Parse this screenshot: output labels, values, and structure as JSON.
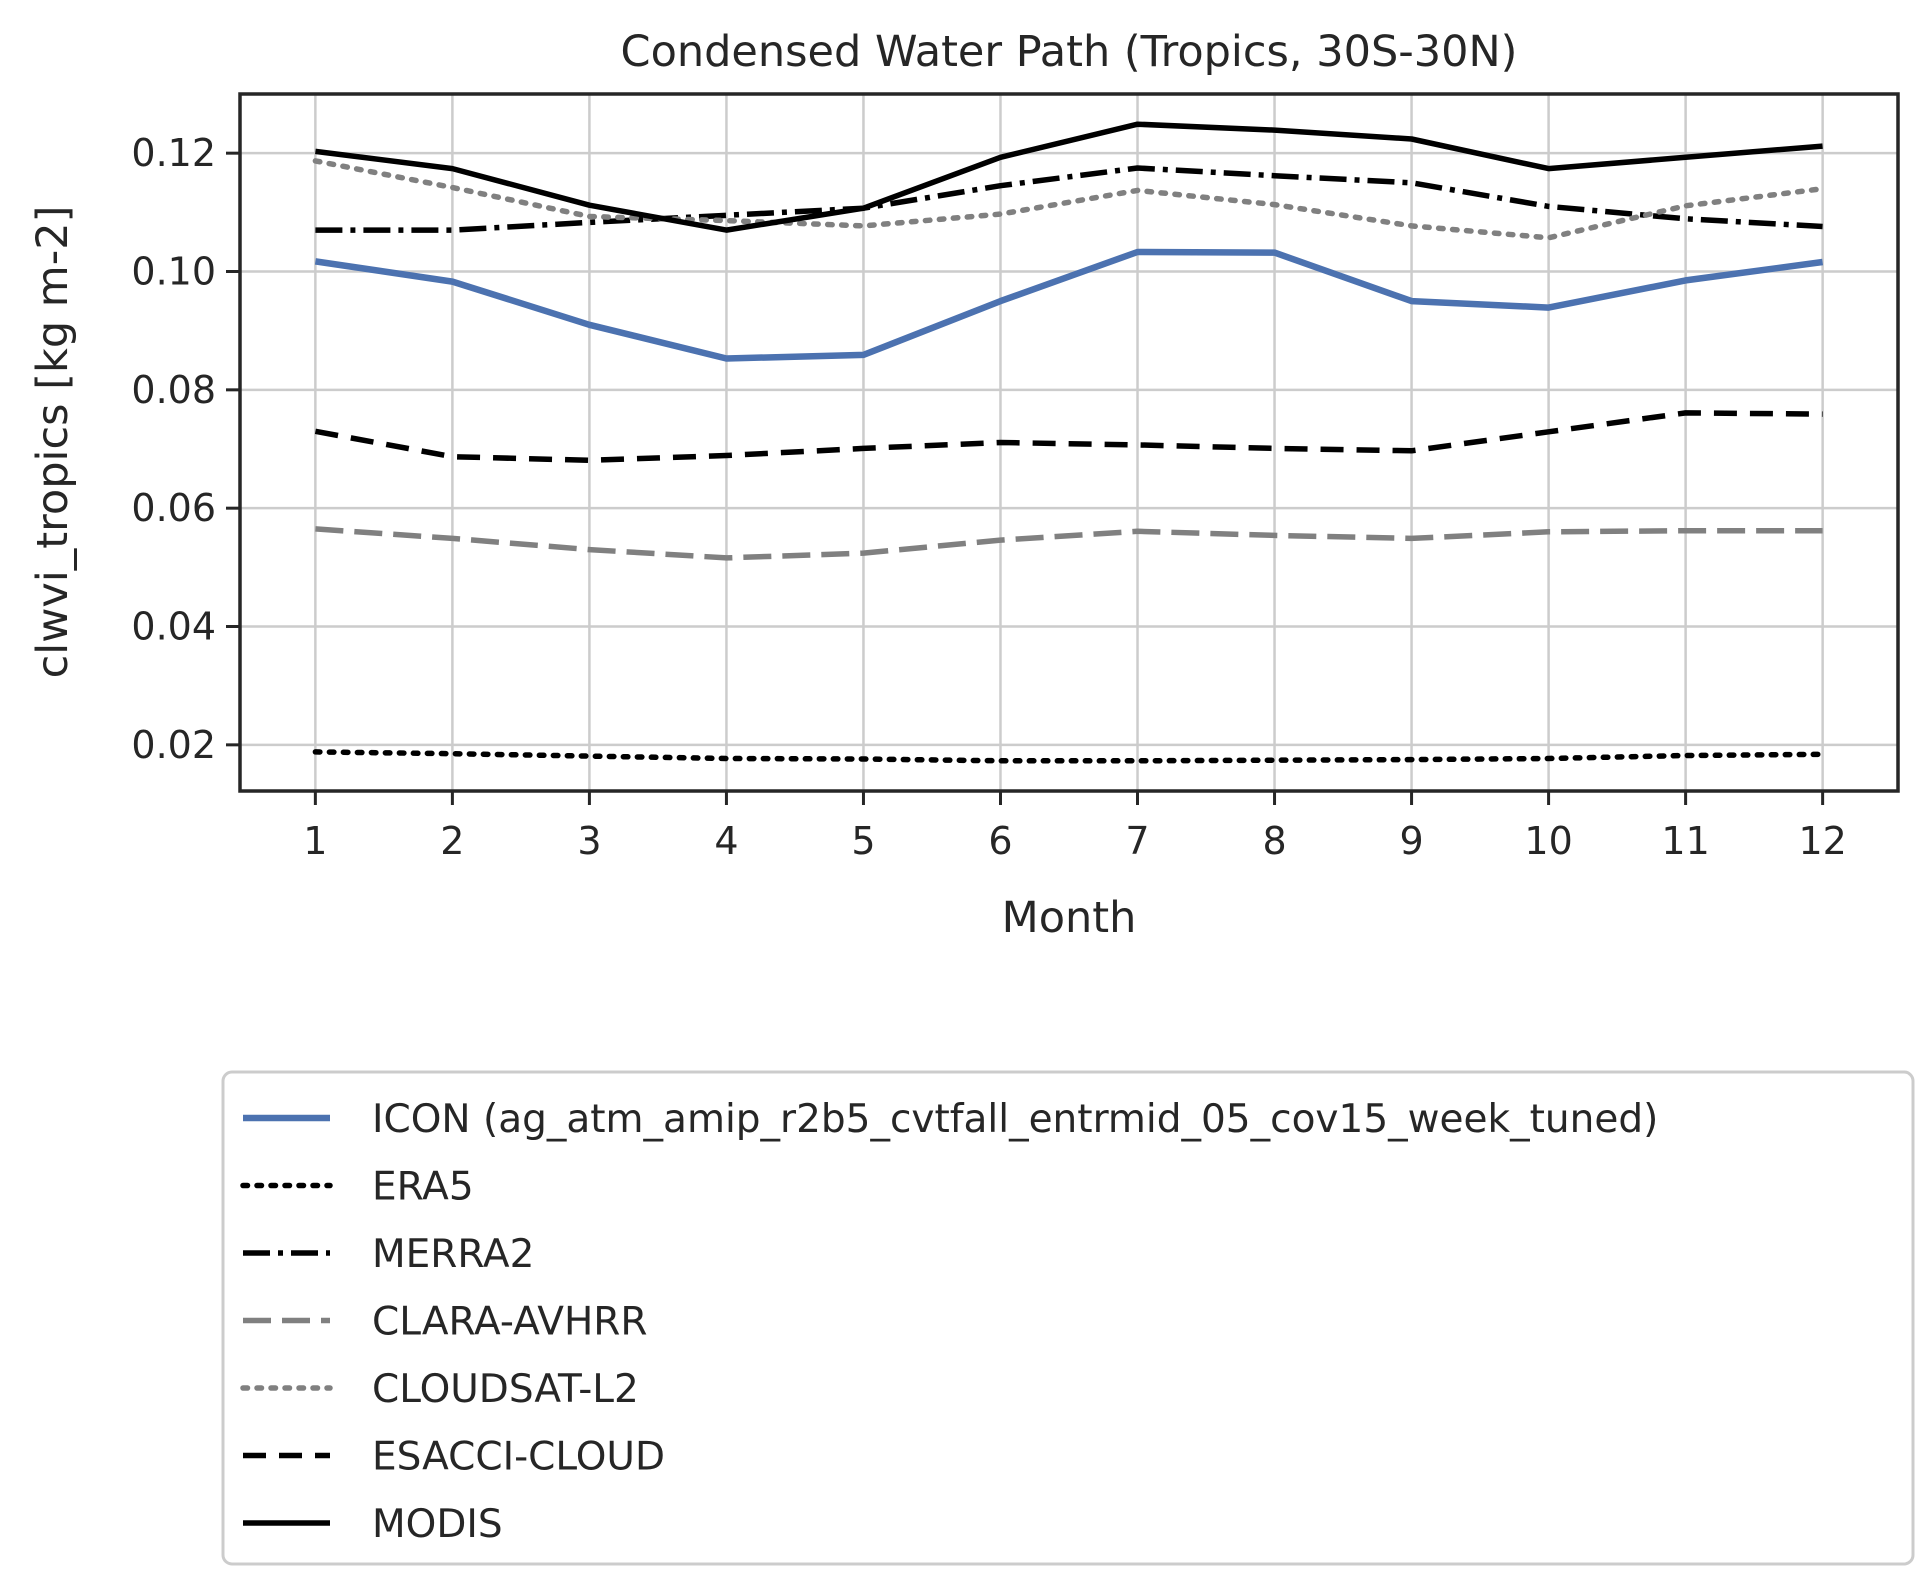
{
  "chart_data": {
    "type": "line",
    "title": "Condensed Water Path (Tropics, 30S-30N)",
    "xlabel": "Month",
    "ylabel": "clwvi_tropics [kg m-2]",
    "x": [
      1,
      2,
      3,
      4,
      5,
      6,
      7,
      8,
      9,
      10,
      11,
      12
    ],
    "xticks": [
      "1",
      "2",
      "3",
      "4",
      "5",
      "6",
      "7",
      "8",
      "9",
      "10",
      "11",
      "12"
    ],
    "yticks": [
      "0.02",
      "0.04",
      "0.06",
      "0.08",
      "0.10",
      "0.12"
    ],
    "xlim": [
      0.45,
      12.55
    ],
    "ylim": [
      0.0122,
      0.13
    ],
    "grid": true,
    "legend_position": "below-center",
    "series": [
      {
        "name": "ICON (ag_atm_amip_r2b5_cvtfall_entrmid_05_cov15_week_tuned)",
        "values": [
          0.1017,
          0.0983,
          0.091,
          0.0853,
          0.0859,
          0.095,
          0.1033,
          0.1032,
          0.095,
          0.0939,
          0.0985,
          0.1016
        ],
        "color": "#4c72b0",
        "style": "solid"
      },
      {
        "name": "ERA5",
        "values": [
          0.0188,
          0.0185,
          0.0181,
          0.0177,
          0.0176,
          0.0173,
          0.0173,
          0.0174,
          0.0175,
          0.0177,
          0.0182,
          0.0184
        ],
        "color": "#000000",
        "style": "dotted"
      },
      {
        "name": "MERRA2",
        "values": [
          0.107,
          0.107,
          0.1083,
          0.1095,
          0.1107,
          0.1145,
          0.1175,
          0.1162,
          0.115,
          0.111,
          0.1089,
          0.1076
        ],
        "color": "#000000",
        "style": "dashdot"
      },
      {
        "name": "CLARA-AVHRR",
        "values": [
          0.0565,
          0.0549,
          0.053,
          0.0516,
          0.0524,
          0.0546,
          0.0561,
          0.0554,
          0.0549,
          0.056,
          0.0562,
          0.0562
        ],
        "color": "#808080",
        "style": "longdash"
      },
      {
        "name": "CLOUDSAT-L2",
        "values": [
          0.1187,
          0.1142,
          0.1093,
          0.1086,
          0.1077,
          0.1097,
          0.1137,
          0.1113,
          0.1077,
          0.1057,
          0.1111,
          0.114
        ],
        "color": "#808080",
        "style": "dotted"
      },
      {
        "name": "ESACCI-CLOUD",
        "values": [
          0.073,
          0.0687,
          0.0681,
          0.0689,
          0.0701,
          0.0711,
          0.0707,
          0.0701,
          0.0697,
          0.0729,
          0.0761,
          0.0759
        ],
        "color": "#000000",
        "style": "dashed"
      },
      {
        "name": "MODIS",
        "values": [
          0.1203,
          0.1174,
          0.1112,
          0.107,
          0.1107,
          0.1193,
          0.1249,
          0.1239,
          0.1224,
          0.1174,
          0.1193,
          0.1212
        ],
        "color": "#000000",
        "style": "solid"
      }
    ]
  }
}
